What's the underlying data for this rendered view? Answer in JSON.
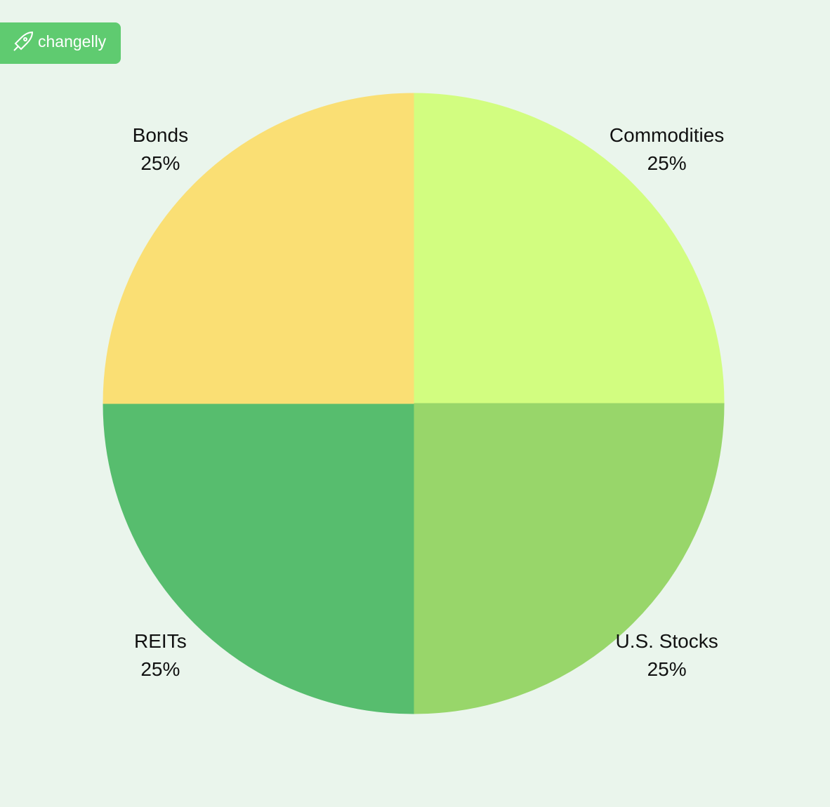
{
  "brand": "changelly",
  "chart_data": {
    "type": "pie",
    "categories": [
      "Commodities",
      "U.S. Stocks",
      "REITs",
      "Bonds"
    ],
    "values": [
      25,
      25,
      25,
      25
    ],
    "value_labels": [
      "25%",
      "25%",
      "25%",
      "25%"
    ],
    "colors": [
      "#d2fd80",
      "#98d66a",
      "#57bd6e",
      "#fadf74"
    ]
  }
}
